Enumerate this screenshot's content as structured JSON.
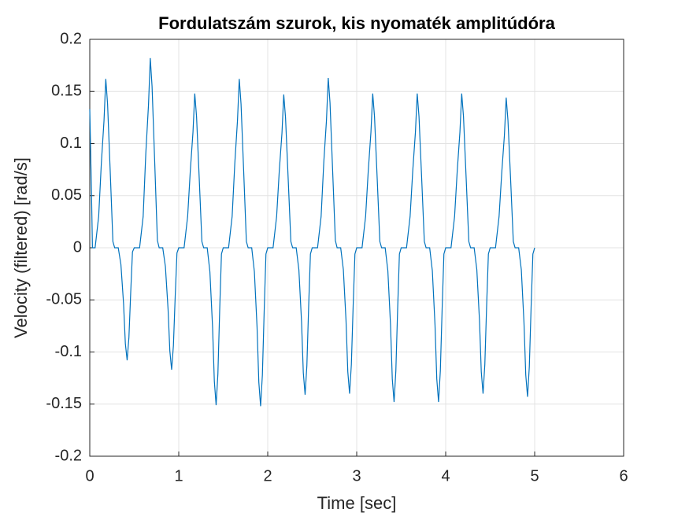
{
  "chart_data": {
    "type": "line",
    "title": "Fordulatszám szurok, kis nyomaték amplitúdóra",
    "x_label": "Time [sec]",
    "y_label": "Velocity (filtered) [rad/s]",
    "x": [
      0,
      0.02,
      0.03,
      0.06,
      0.1,
      0.13,
      0.16,
      0.18,
      0.2,
      0.23,
      0.26,
      0.28,
      0.32,
      0.35,
      0.38,
      0.4,
      0.42,
      0.44,
      0.46,
      0.48,
      0.5,
      0.56,
      0.6,
      0.63,
      0.66,
      0.68,
      0.7,
      0.73,
      0.76,
      0.78,
      0.82,
      0.85,
      0.88,
      0.9,
      0.92,
      0.94,
      0.96,
      0.98,
      1.0,
      1.06,
      1.1,
      1.13,
      1.16,
      1.18,
      1.2,
      1.23,
      1.26,
      1.28,
      1.32,
      1.35,
      1.38,
      1.4,
      1.42,
      1.44,
      1.46,
      1.48,
      1.5,
      1.56,
      1.6,
      1.63,
      1.66,
      1.68,
      1.7,
      1.73,
      1.76,
      1.78,
      1.82,
      1.85,
      1.88,
      1.9,
      1.92,
      1.94,
      1.96,
      1.98,
      2.0,
      2.06,
      2.1,
      2.13,
      2.16,
      2.18,
      2.2,
      2.23,
      2.26,
      2.28,
      2.32,
      2.35,
      2.38,
      2.4,
      2.42,
      2.44,
      2.46,
      2.48,
      2.5,
      2.56,
      2.6,
      2.63,
      2.66,
      2.68,
      2.7,
      2.73,
      2.76,
      2.78,
      2.82,
      2.85,
      2.88,
      2.9,
      2.92,
      2.94,
      2.96,
      2.98,
      3.0,
      3.06,
      3.1,
      3.13,
      3.16,
      3.18,
      3.2,
      3.23,
      3.26,
      3.28,
      3.32,
      3.35,
      3.38,
      3.4,
      3.42,
      3.44,
      3.46,
      3.48,
      3.5,
      3.56,
      3.6,
      3.63,
      3.66,
      3.68,
      3.7,
      3.73,
      3.76,
      3.78,
      3.82,
      3.85,
      3.88,
      3.9,
      3.92,
      3.94,
      3.96,
      3.98,
      4.0,
      4.06,
      4.1,
      4.13,
      4.16,
      4.18,
      4.2,
      4.23,
      4.26,
      4.28,
      4.32,
      4.35,
      4.38,
      4.4,
      4.42,
      4.44,
      4.46,
      4.48,
      4.5,
      4.56,
      4.6,
      4.63,
      4.66,
      4.68,
      4.7,
      4.73,
      4.76,
      4.78,
      4.82,
      4.85,
      4.88,
      4.9,
      4.92,
      4.94,
      4.96,
      4.98,
      5.0
    ],
    "series": [
      {
        "color": "#0072bd",
        "values": [
          0.133,
          0.05,
          0,
          0,
          0.03,
          0.081,
          0.122,
          0.162,
          0.138,
          0.073,
          0.006,
          0,
          0,
          -0.016,
          -0.054,
          -0.092,
          -0.108,
          -0.086,
          -0.043,
          -0.004,
          0,
          0,
          0.03,
          0.091,
          0.137,
          0.182,
          0.155,
          0.082,
          0.007,
          0,
          0,
          -0.018,
          -0.059,
          -0.099,
          -0.117,
          -0.094,
          -0.047,
          -0.005,
          0,
          0,
          0.03,
          0.074,
          0.111,
          0.148,
          0.126,
          0.067,
          0.006,
          0,
          0,
          -0.023,
          -0.076,
          -0.128,
          -0.151,
          -0.121,
          -0.06,
          -0.006,
          0,
          0,
          0.03,
          0.081,
          0.122,
          0.162,
          0.138,
          0.073,
          0.006,
          0,
          0,
          -0.023,
          -0.076,
          -0.129,
          -0.152,
          -0.122,
          -0.061,
          -0.006,
          0,
          0,
          0.03,
          0.074,
          0.11,
          0.147,
          0.125,
          0.066,
          0.006,
          0,
          0,
          -0.021,
          -0.071,
          -0.12,
          -0.141,
          -0.113,
          -0.056,
          -0.006,
          0,
          0,
          0.03,
          0.082,
          0.122,
          0.163,
          0.139,
          0.073,
          0.007,
          0,
          0,
          -0.021,
          -0.07,
          -0.119,
          -0.14,
          -0.112,
          -0.056,
          -0.006,
          0,
          0,
          0.03,
          0.074,
          0.111,
          0.148,
          0.126,
          0.067,
          0.006,
          0,
          0,
          -0.022,
          -0.074,
          -0.126,
          -0.148,
          -0.118,
          -0.059,
          -0.006,
          0,
          0,
          0.03,
          0.074,
          0.111,
          0.148,
          0.126,
          0.067,
          0.006,
          0,
          0,
          -0.022,
          -0.074,
          -0.126,
          -0.148,
          -0.118,
          -0.059,
          -0.006,
          0,
          0,
          0.03,
          0.074,
          0.111,
          0.148,
          0.126,
          0.067,
          0.006,
          0,
          0,
          -0.021,
          -0.07,
          -0.119,
          -0.14,
          -0.112,
          -0.056,
          -0.006,
          0,
          0,
          0.03,
          0.072,
          0.108,
          0.144,
          0.122,
          0.065,
          0.006,
          0,
          0,
          -0.021,
          -0.072,
          -0.122,
          -0.143,
          -0.114,
          -0.057,
          -0.006,
          0
        ]
      }
    ],
    "xlim": [
      0,
      6
    ],
    "xticks": [
      0,
      1,
      2,
      3,
      4,
      5,
      6
    ],
    "ylim": [
      -0.2,
      0.2
    ],
    "yticks": [
      -0.2,
      -0.15,
      -0.1,
      -0.05,
      0,
      0.05,
      0.1,
      0.15,
      0.2
    ],
    "grid": true
  }
}
